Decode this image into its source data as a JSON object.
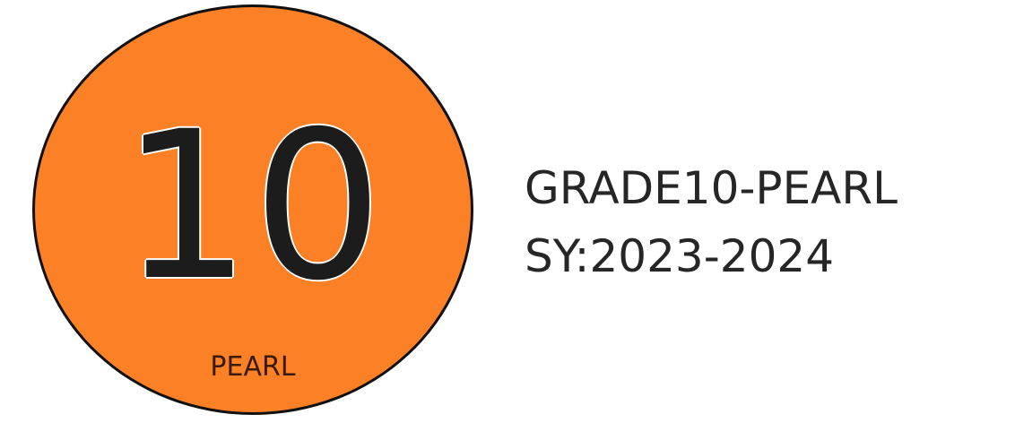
{
  "badge": {
    "number": "10",
    "label": "PEARL"
  },
  "info": {
    "section_title": "GRADE10-PEARL",
    "school_year": "SY:2023-2024"
  },
  "colors": {
    "badge_fill": "#fc8126",
    "badge_border": "#111111",
    "number_text": "#1c1c1c",
    "label_text": "#3a1a0a",
    "info_text": "#262626",
    "background": "#ffffff"
  }
}
